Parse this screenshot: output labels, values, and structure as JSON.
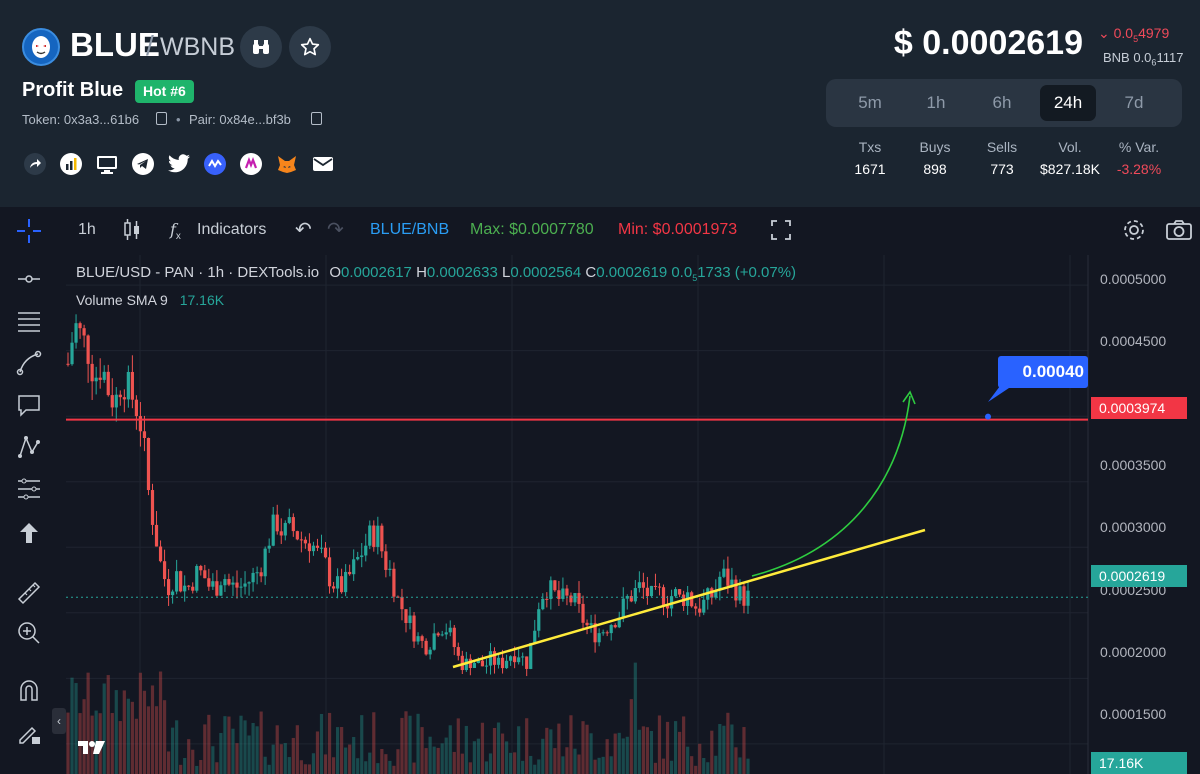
{
  "header": {
    "base": "BLUE",
    "separator": "/",
    "quote": "WBNB",
    "project_name": "Profit Blue",
    "hot_badge": "Hot #6",
    "token_label": "Token: 0x3a3...61b6",
    "pair_label": "Pair: 0x84e...bf3b",
    "price": "$ 0.0002619",
    "change": "0.0",
    "change_sub": "5",
    "change_tail": "4979",
    "bnb_price": "BNB 0.0",
    "bnb_sub": "6",
    "bnb_tail": "1117",
    "socials": [
      "share-icon",
      "chart-icon",
      "monitor-icon",
      "telegram-icon",
      "twitter-icon",
      "coinmarketcap-icon",
      "dextools-icon",
      "metamask-icon",
      "email-icon"
    ]
  },
  "timeframes": [
    "5m",
    "1h",
    "6h",
    "24h",
    "7d"
  ],
  "active_timeframe": "24h",
  "stats": [
    {
      "label": "Txs",
      "value": "1671"
    },
    {
      "label": "Buys",
      "value": "898"
    },
    {
      "label": "Sells",
      "value": "773"
    },
    {
      "label": "Vol.",
      "value": "$827.18K"
    },
    {
      "label": "% Var.",
      "value": "-3.28%"
    }
  ],
  "chart_toolbar": {
    "interval": "1h",
    "indicators": "Indicators",
    "symbol": "BLUE/BNB",
    "max": "Max: $0.0007780",
    "min": "Min: $0.0001973"
  },
  "legend": {
    "title": "BLUE/USD - PAN · 1h · DEXTools.io",
    "o_label": "O",
    "o": "0.0002617",
    "h_label": "H",
    "h": "0.0002633",
    "l_label": "L",
    "l": "0.0002564",
    "c_label": "C",
    "c": "0.0002619",
    "delta": "0.0",
    "delta_sub": "5",
    "delta_tail": "1733 (+0.07%)",
    "volume_label": "Volume SMA 9",
    "volume_value": "17.16K"
  },
  "annotations": {
    "target_label": "0.00040",
    "resistance": 0.0003974
  },
  "colors": {
    "up": "#26a69a",
    "down": "#ef5350",
    "resistance": "#f23645",
    "trend": "#ffeb3b",
    "arrow": "#2ecc40",
    "accent": "#2962ff"
  },
  "chart_data": {
    "type": "candlestick",
    "y_axis_ticks": [
      "0.0005000",
      "0.0004500",
      "0.0003500",
      "0.0003000",
      "0.0002500",
      "0.0002000",
      "0.0001500"
    ],
    "price_tags": [
      "0.0003974",
      "0.0002619",
      "17.16K"
    ],
    "ylim": [
      0.000127,
      0.000523
    ],
    "close_series": [
      0.00044,
      0.00047,
      0.00046,
      0.00045,
      0.00043,
      0.00044,
      0.00042,
      0.00041,
      0.00043,
      0.00042,
      0.00041,
      0.00039,
      0.00034,
      0.00031,
      0.00028,
      0.00027,
      0.00028,
      0.00027,
      0.00027,
      0.00028,
      0.00028,
      0.00027,
      0.00027,
      0.00028,
      0.00027,
      0.00027,
      0.00027,
      0.000275,
      0.00028,
      0.00029,
      0.00031,
      0.00032,
      0.00031,
      0.000315,
      0.00031,
      0.000305,
      0.000305,
      0.000295,
      0.00029,
      0.000275,
      0.00027,
      0.00027,
      0.00028,
      0.00029,
      0.0003,
      0.00031,
      0.00031,
      0.00029,
      0.00028,
      0.00026,
      0.00025,
      0.00024,
      0.00023,
      0.000225,
      0.00023,
      0.00024,
      0.00024,
      0.00023,
      0.000215,
      0.00021,
      0.000215,
      0.00021,
      0.00021,
      0.000215,
      0.00021,
      0.000215,
      0.00022,
      0.00022,
      0.00021,
      0.00023,
      0.00026,
      0.00027,
      0.000265,
      0.00026,
      0.00026,
      0.00026,
      0.00025,
      0.00024,
      0.000235,
      0.000235,
      0.00024,
      0.000245,
      0.00025,
      0.00026,
      0.000265,
      0.00027,
      0.000265,
      0.00026,
      0.000265,
      0.00026,
      0.000265,
      0.00026,
      0.000265,
      0.000255,
      0.000255,
      0.00026,
      0.000265,
      0.00028,
      0.000275,
      0.00027,
      0.000262,
      0.0002619
    ]
  }
}
